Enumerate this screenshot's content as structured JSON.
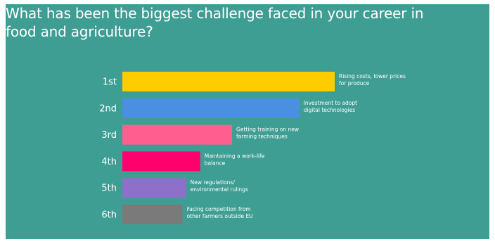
{
  "colors": {
    "background": "#3f9e93",
    "text": "#ffffff"
  },
  "title": "What has been the biggest challenge faced in your career in food and agriculture?",
  "chart_data": {
    "type": "bar",
    "orientation": "horizontal",
    "title": "What has been the biggest challenge faced in your career in food and agriculture?",
    "xlabel": "",
    "ylabel": "",
    "grid": false,
    "legend": "none",
    "categories": [
      "1st",
      "2nd",
      "3rd",
      "4th",
      "5th",
      "6th"
    ],
    "values": [
      6,
      5,
      3.1,
      2.2,
      1.8,
      1.7
    ],
    "xlim": [
      0,
      6
    ],
    "annotations": [
      [
        "Rising costs, lower prices",
        "for produce"
      ],
      [
        "Investment to adopt",
        "digital technologies"
      ],
      [
        "Getting training on new",
        "farming techniques"
      ],
      [
        "Maintaining a work-life",
        "balance"
      ],
      [
        "New regulations/",
        "environmental rulings"
      ],
      [
        "Facing competition from",
        "other farmers outside EU"
      ]
    ],
    "bar_colors": [
      "#ffcc00",
      "#4a90e2",
      "#ff5f8f",
      "#ff006e",
      "#8e6fc9",
      "#7a7a7a"
    ]
  }
}
